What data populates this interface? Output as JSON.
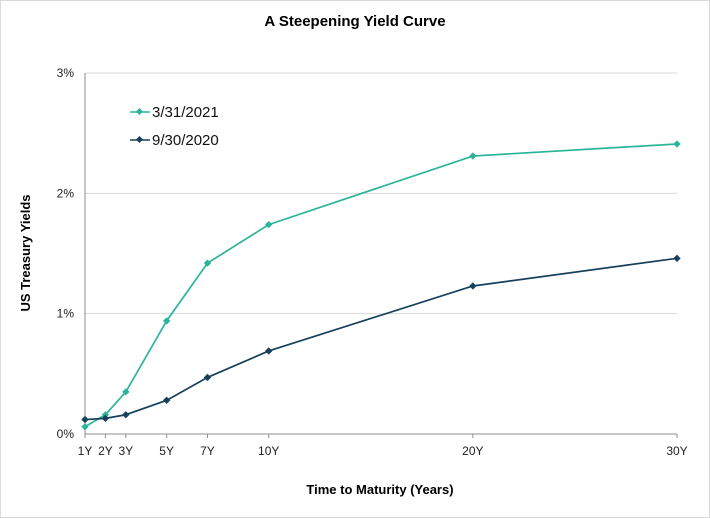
{
  "chart_data": {
    "type": "line",
    "title": "A Steepening Yield Curve",
    "xlabel": "Time to Maturity (Years)",
    "ylabel": "US Treasury Yields",
    "x": [
      1,
      2,
      3,
      5,
      7,
      10,
      20,
      30
    ],
    "x_tick_labels": [
      "1Y",
      "2Y",
      "3Y",
      "5Y",
      "7Y",
      "10Y",
      "20Y",
      "30Y"
    ],
    "ylim": [
      0,
      3
    ],
    "y_ticks": [
      0,
      1,
      2,
      3
    ],
    "y_tick_labels": [
      "0%",
      "1%",
      "2%",
      "3%"
    ],
    "grid": "horizontal",
    "legend_position": "top-left",
    "series": [
      {
        "name": "3/31/2021",
        "color": "#2ab59b",
        "values": [
          0.06,
          0.16,
          0.35,
          0.94,
          1.42,
          1.74,
          2.31,
          2.41
        ]
      },
      {
        "name": "9/30/2020",
        "color": "#17405a",
        "values": [
          0.12,
          0.13,
          0.16,
          0.28,
          0.47,
          0.69,
          1.23,
          1.46
        ]
      }
    ]
  }
}
